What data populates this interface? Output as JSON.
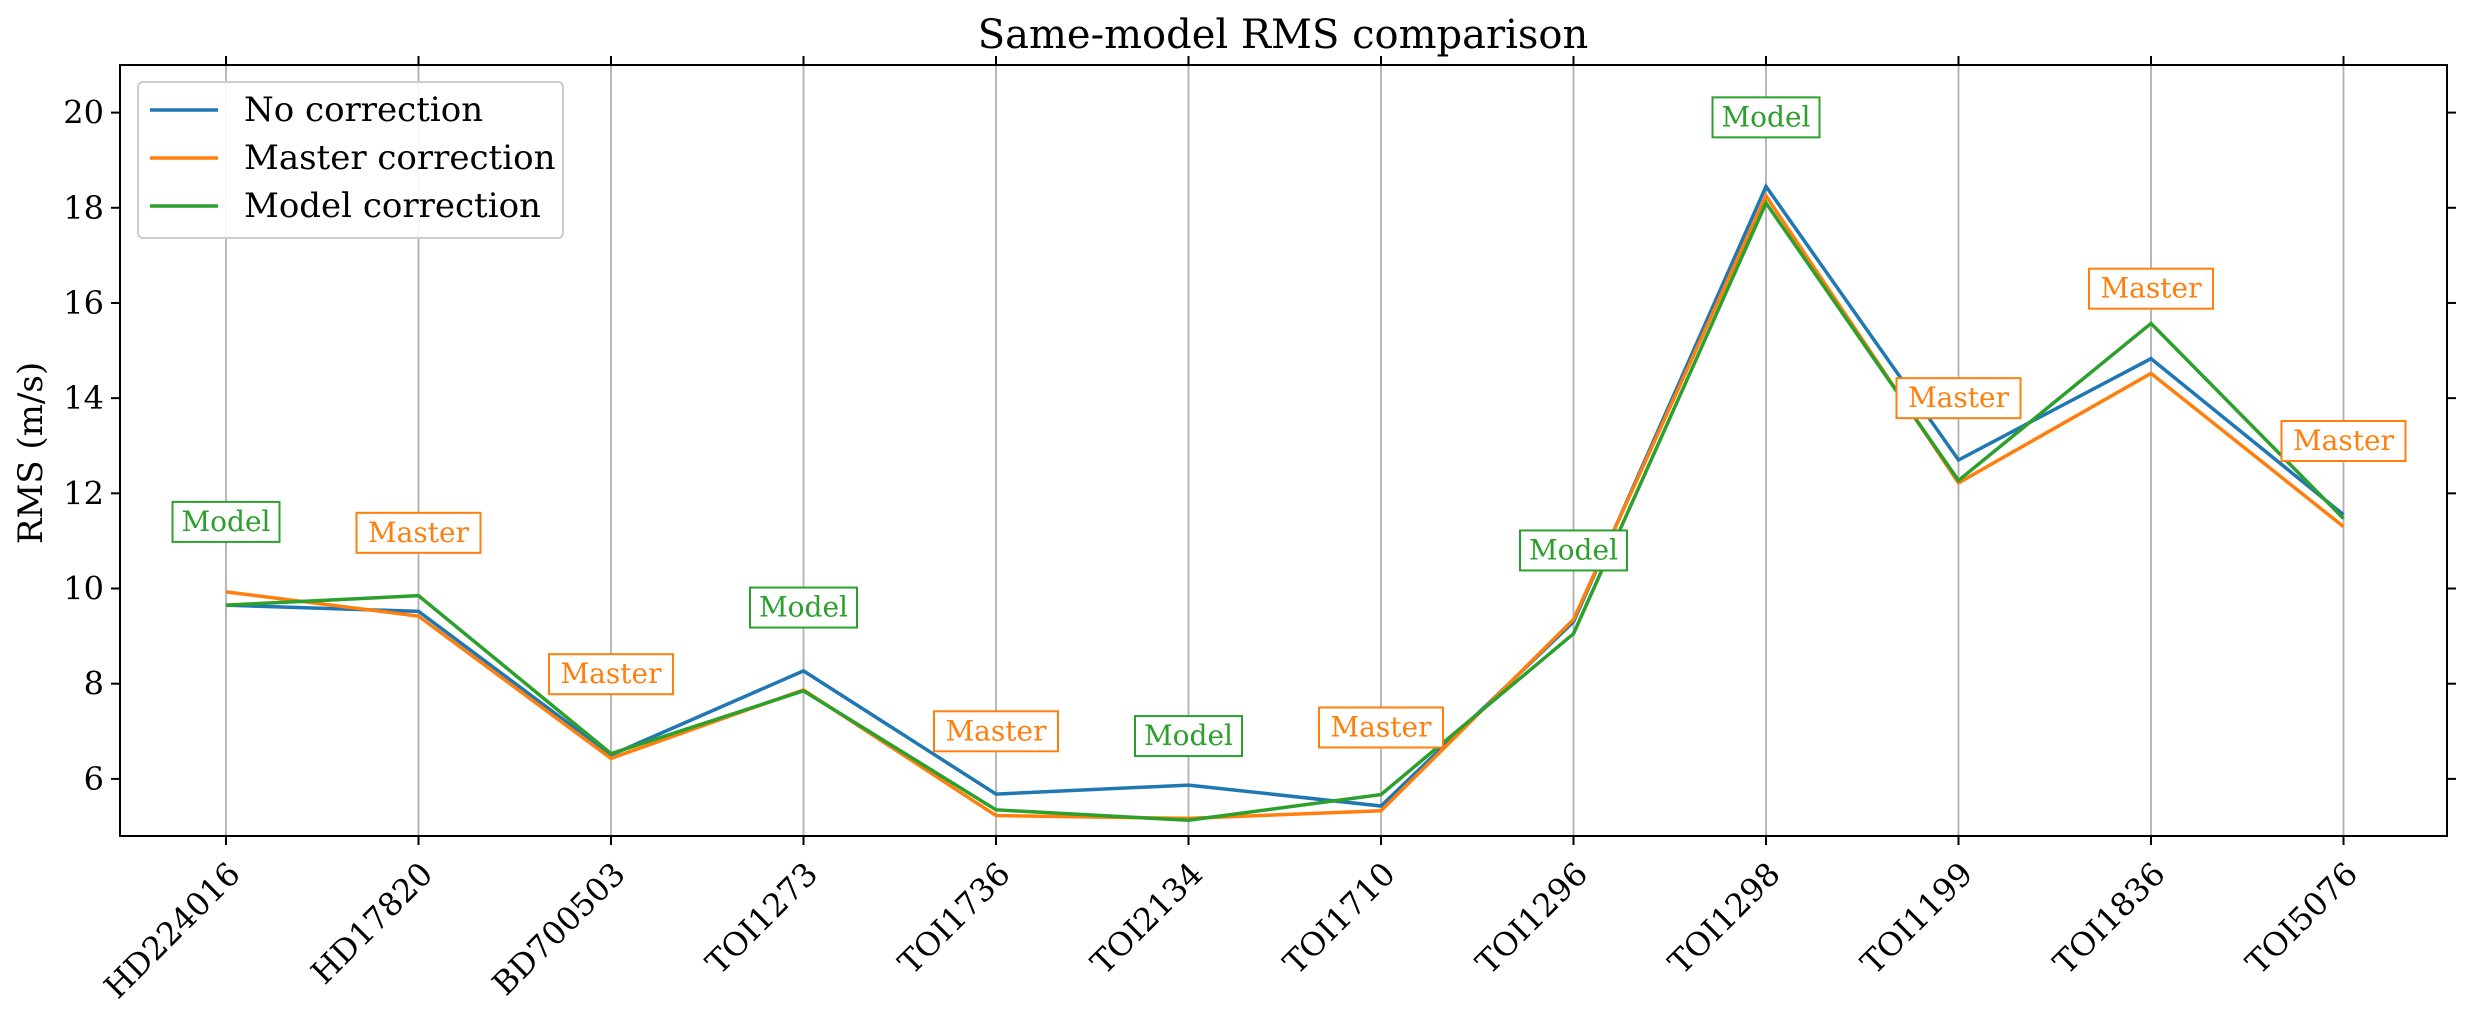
{
  "chart_data": {
    "type": "line",
    "title": "Same-model RMS comparison",
    "xlabel": "",
    "ylabel": "RMS (m/s)",
    "categories": [
      "HD224016",
      "HD17820",
      "BD700503",
      "TOI1273",
      "TOI1736",
      "TOI2134",
      "TOI1710",
      "TOI1296",
      "TOI1298",
      "TOI1199",
      "TOI1836",
      "TOI5076"
    ],
    "ylim": [
      4.8,
      21.0
    ],
    "yticks": [
      6,
      8,
      10,
      12,
      14,
      16,
      18,
      20
    ],
    "grid": "vertical",
    "legend_position": "top-left",
    "series": [
      {
        "name": "No correction",
        "color": "#1f77b4",
        "values": [
          9.65,
          9.52,
          6.5,
          8.27,
          5.68,
          5.87,
          5.43,
          9.3,
          18.45,
          12.7,
          14.83,
          11.55
        ]
      },
      {
        "name": "Master correction",
        "color": "#ff7f0e",
        "values": [
          9.93,
          9.42,
          6.43,
          7.87,
          5.23,
          5.17,
          5.33,
          9.35,
          18.25,
          12.22,
          14.52,
          11.3
        ]
      },
      {
        "name": "Model correction",
        "color": "#2ca02c",
        "values": [
          9.65,
          9.85,
          6.53,
          7.85,
          5.35,
          5.13,
          5.67,
          9.05,
          18.1,
          12.27,
          15.57,
          11.47
        ]
      }
    ],
    "annotations": [
      {
        "category": "HD224016",
        "text": "Model",
        "y": 11.4,
        "color": "#2ca02c"
      },
      {
        "category": "HD17820",
        "text": "Master",
        "y": 11.17,
        "color": "#ff7f0e"
      },
      {
        "category": "BD700503",
        "text": "Master",
        "y": 8.2,
        "color": "#ff7f0e"
      },
      {
        "category": "TOI1273",
        "text": "Model",
        "y": 9.6,
        "color": "#2ca02c"
      },
      {
        "category": "TOI1736",
        "text": "Master",
        "y": 7.0,
        "color": "#ff7f0e"
      },
      {
        "category": "TOI2134",
        "text": "Model",
        "y": 6.9,
        "color": "#2ca02c"
      },
      {
        "category": "TOI1710",
        "text": "Master",
        "y": 7.08,
        "color": "#ff7f0e"
      },
      {
        "category": "TOI1296",
        "text": "Model",
        "y": 10.8,
        "color": "#2ca02c"
      },
      {
        "category": "TOI1298",
        "text": "Model",
        "y": 19.9,
        "color": "#2ca02c"
      },
      {
        "category": "TOI1199",
        "text": "Master",
        "y": 14.0,
        "color": "#ff7f0e"
      },
      {
        "category": "TOI1836",
        "text": "Master",
        "y": 16.3,
        "color": "#ff7f0e"
      },
      {
        "category": "TOI5076",
        "text": "Master",
        "y": 13.1,
        "color": "#ff7f0e"
      }
    ]
  }
}
